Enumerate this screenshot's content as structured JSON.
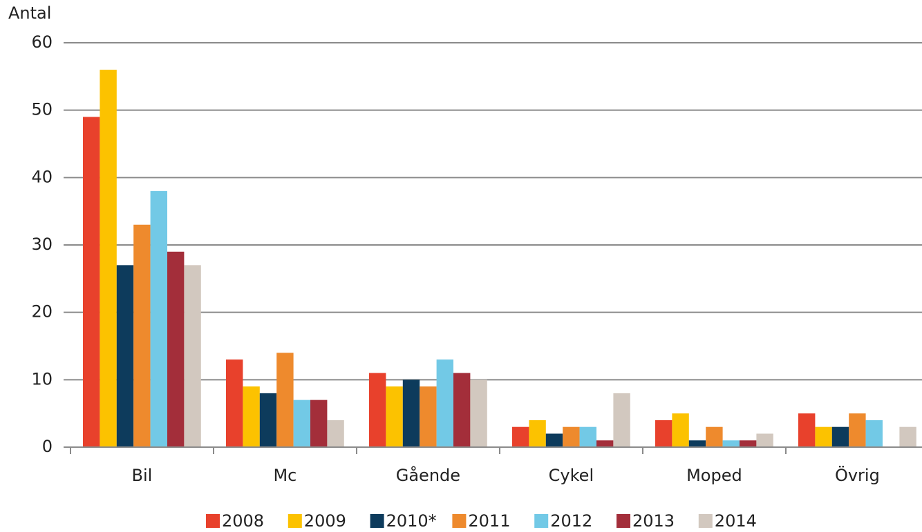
{
  "chart_data": {
    "type": "bar",
    "y_label": "Antal",
    "categories": [
      "Bil",
      "Mc",
      "Gående",
      "Cykel",
      "Moped",
      "Övrig"
    ],
    "series": [
      {
        "name": "2008",
        "color": "#e8412c",
        "values": [
          49,
          13,
          11,
          3,
          4,
          5
        ]
      },
      {
        "name": "2009",
        "color": "#fcc200",
        "values": [
          56,
          9,
          9,
          4,
          5,
          3
        ]
      },
      {
        "name": "2010*",
        "color": "#0d3b5c",
        "values": [
          27,
          8,
          10,
          2,
          1,
          3
        ]
      },
      {
        "name": "2011",
        "color": "#ee8a2d",
        "values": [
          33,
          14,
          9,
          3,
          3,
          5
        ]
      },
      {
        "name": "2012",
        "color": "#72c9e6",
        "values": [
          38,
          7,
          13,
          3,
          1,
          4
        ]
      },
      {
        "name": "2013",
        "color": "#a32e3a",
        "values": [
          29,
          7,
          11,
          1,
          1,
          0
        ]
      },
      {
        "name": "2014",
        "color": "#d2c8bf",
        "values": [
          27,
          4,
          10,
          8,
          2,
          3
        ]
      }
    ],
    "ylim": [
      0,
      60
    ],
    "yticks": [
      0,
      10,
      20,
      30,
      40,
      50,
      60
    ],
    "grid": true,
    "legend": "bottom"
  }
}
